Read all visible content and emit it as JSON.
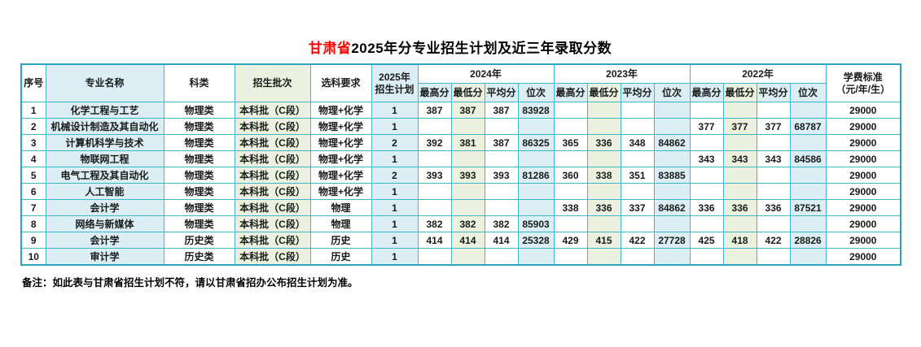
{
  "title": {
    "province": "甘肃省",
    "rest": "2025年分专业招生计划及近三年录取分数"
  },
  "header": {
    "seq": "序号",
    "major": "专业名称",
    "category": "科类",
    "batch": "招生批次",
    "subjects": "选科要求",
    "plan_line1": "2025年",
    "plan_line2": "招生计划",
    "years": [
      "2024年",
      "2023年",
      "2022年"
    ],
    "score_cols": [
      "最高分",
      "最低分",
      "平均分",
      "位次"
    ],
    "fee_line1": "学费标准",
    "fee_line2": "（元/年/生）"
  },
  "rows": [
    {
      "seq": "1",
      "major": "化学工程与工艺",
      "category": "物理类",
      "batch": "本科批（C段）",
      "subjects": "物理+化学",
      "plan": "1",
      "y2024": [
        "387",
        "387",
        "387",
        "83928"
      ],
      "y2023": [
        "",
        "",
        "",
        ""
      ],
      "y2022": [
        "",
        "",
        "",
        ""
      ],
      "fee": "29000"
    },
    {
      "seq": "2",
      "major": "机械设计制造及其自动化",
      "category": "物理类",
      "batch": "本科批（C段）",
      "subjects": "物理+化学",
      "plan": "1",
      "y2024": [
        "",
        "",
        "",
        ""
      ],
      "y2023": [
        "",
        "",
        "",
        ""
      ],
      "y2022": [
        "377",
        "377",
        "377",
        "68787"
      ],
      "fee": "29000"
    },
    {
      "seq": "3",
      "major": "计算机科学与技术",
      "category": "物理类",
      "batch": "本科批（C段）",
      "subjects": "物理+化学",
      "plan": "2",
      "y2024": [
        "392",
        "381",
        "387",
        "86325"
      ],
      "y2023": [
        "365",
        "336",
        "348",
        "84862"
      ],
      "y2022": [
        "",
        "",
        "",
        ""
      ],
      "fee": "29000"
    },
    {
      "seq": "4",
      "major": "物联网工程",
      "category": "物理类",
      "batch": "本科批（C段）",
      "subjects": "物理+化学",
      "plan": "1",
      "y2024": [
        "",
        "",
        "",
        ""
      ],
      "y2023": [
        "",
        "",
        "",
        ""
      ],
      "y2022": [
        "343",
        "343",
        "343",
        "84586"
      ],
      "fee": "29000"
    },
    {
      "seq": "5",
      "major": "电气工程及其自动化",
      "category": "物理类",
      "batch": "本科批（C段）",
      "subjects": "物理+化学",
      "plan": "2",
      "y2024": [
        "393",
        "393",
        "393",
        "81286"
      ],
      "y2023": [
        "360",
        "338",
        "351",
        "83885"
      ],
      "y2022": [
        "",
        "",
        "",
        ""
      ],
      "fee": "29000"
    },
    {
      "seq": "6",
      "major": "人工智能",
      "category": "物理类",
      "batch": "本科批（C段）",
      "subjects": "物理+化学",
      "plan": "1",
      "y2024": [
        "",
        "",
        "",
        ""
      ],
      "y2023": [
        "",
        "",
        "",
        ""
      ],
      "y2022": [
        "",
        "",
        "",
        ""
      ],
      "fee": "29000"
    },
    {
      "seq": "7",
      "major": "会计学",
      "category": "物理类",
      "batch": "本科批（C段）",
      "subjects": "物理",
      "plan": "1",
      "y2024": [
        "",
        "",
        "",
        ""
      ],
      "y2023": [
        "338",
        "336",
        "337",
        "84862"
      ],
      "y2022": [
        "336",
        "336",
        "336",
        "87521"
      ],
      "fee": "29000"
    },
    {
      "seq": "8",
      "major": "网络与新媒体",
      "category": "物理类",
      "batch": "本科批（C段）",
      "subjects": "物理",
      "plan": "1",
      "y2024": [
        "382",
        "382",
        "382",
        "85903"
      ],
      "y2023": [
        "",
        "",
        "",
        ""
      ],
      "y2022": [
        "",
        "",
        "",
        ""
      ],
      "fee": "29000"
    },
    {
      "seq": "9",
      "major": "会计学",
      "category": "历史类",
      "batch": "本科批（C段）",
      "subjects": "历史",
      "plan": "1",
      "y2024": [
        "414",
        "414",
        "414",
        "25328"
      ],
      "y2023": [
        "429",
        "415",
        "422",
        "27728"
      ],
      "y2022": [
        "425",
        "418",
        "422",
        "28826"
      ],
      "fee": "29000"
    },
    {
      "seq": "10",
      "major": "审计学",
      "category": "历史类",
      "batch": "本科批（C段）",
      "subjects": "历史",
      "plan": "1",
      "y2024": [
        "",
        "",
        "",
        ""
      ],
      "y2023": [
        "",
        "",
        "",
        ""
      ],
      "y2022": [
        "",
        "",
        "",
        ""
      ],
      "fee": "29000"
    }
  ],
  "note": "备注：如此表与甘肃省招生计划不符，请以甘肃省招办公布招生计划为准。",
  "colors": {
    "title_highlight": "#ff0000",
    "grid_border": "#41b5cd",
    "outer_border": "#2aa5c0",
    "cell_blue": "#daeef3",
    "cell_green": "#ebf1de",
    "plan_text_red": "#ff5050"
  }
}
